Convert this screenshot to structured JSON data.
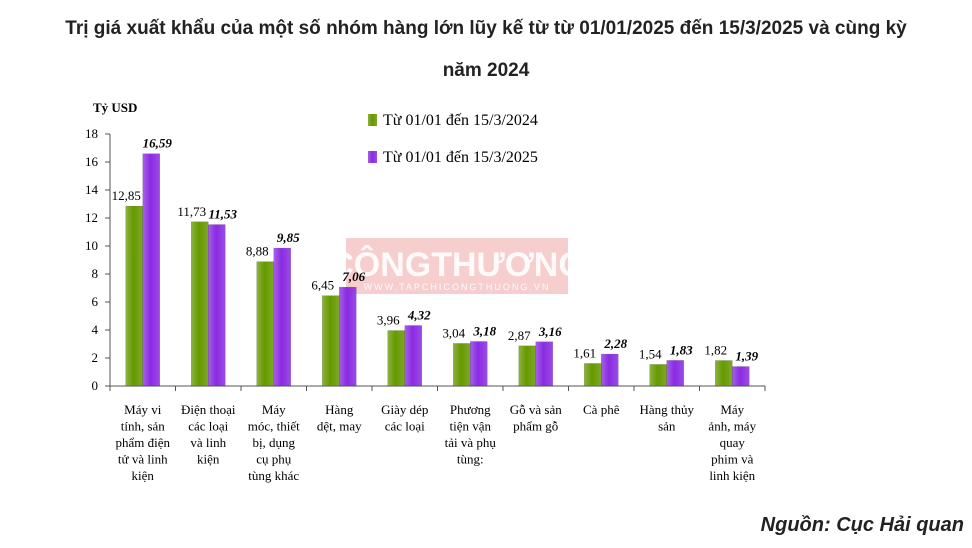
{
  "title_line1": "Trị giá xuất khẩu của một số nhóm hàng lớn lũy kế từ từ 01/01/2025 đến 15/3/2025 và cùng kỳ",
  "title_line2": "năm 2024",
  "source": "Nguồn: Cục Hải quan",
  "watermark": {
    "main": "CÔNGTHƯƠNG",
    "sub": "WWW.TAPCHICONGTHUONG.VN"
  },
  "colors": {
    "series1": "#669900",
    "series2": "#8a2be2"
  },
  "chart_data": {
    "type": "bar",
    "ylabel": "Tỷ USD",
    "ylim": [
      0,
      18
    ],
    "yticks": [
      "0",
      "2",
      "4",
      "6",
      "8",
      "10",
      "12",
      "14",
      "16",
      "18"
    ],
    "grid": false,
    "legend": "top-center",
    "categories": [
      [
        "Máy vi",
        "tính, sản",
        "phẩm điện",
        "tử và linh",
        "kiện"
      ],
      [
        "Điện thoại",
        "các loại",
        "và linh",
        "kiện"
      ],
      [
        "Máy",
        "móc, thiết",
        "bị, dụng",
        "cụ phụ",
        "tùng khác"
      ],
      [
        "Hàng",
        "dệt, may"
      ],
      [
        "Giày dép",
        "các loại"
      ],
      [
        "Phương",
        "tiện vận",
        "tải và phụ",
        "tùng:"
      ],
      [
        "Gỗ và sản",
        "phẩm gỗ"
      ],
      [
        "Cà phê"
      ],
      [
        "Hàng thủy",
        "sản"
      ],
      [
        "Máy",
        "ảnh, máy",
        "quay",
        "phim và",
        "linh kiện"
      ]
    ],
    "series": [
      {
        "name": "Từ 01/01 đến 15/3/2024",
        "values": [
          12.85,
          11.73,
          8.88,
          6.45,
          3.96,
          3.04,
          2.87,
          1.61,
          1.54,
          1.82
        ],
        "labels": [
          "12,85",
          "11,73",
          "8,88",
          "6,45",
          "3,96",
          "3,04",
          "2,87",
          "1,61",
          "1,54",
          "1,82"
        ]
      },
      {
        "name": "Từ 01/01 đến 15/3/2025",
        "values": [
          16.59,
          11.53,
          9.85,
          7.06,
          4.32,
          3.18,
          3.16,
          2.28,
          1.83,
          1.39
        ],
        "labels": [
          "16,59",
          "11,53",
          "9,85",
          "7,06",
          "4,32",
          "3,18",
          "3,16",
          "2,28",
          "1,83",
          "1,39"
        ]
      }
    ]
  }
}
